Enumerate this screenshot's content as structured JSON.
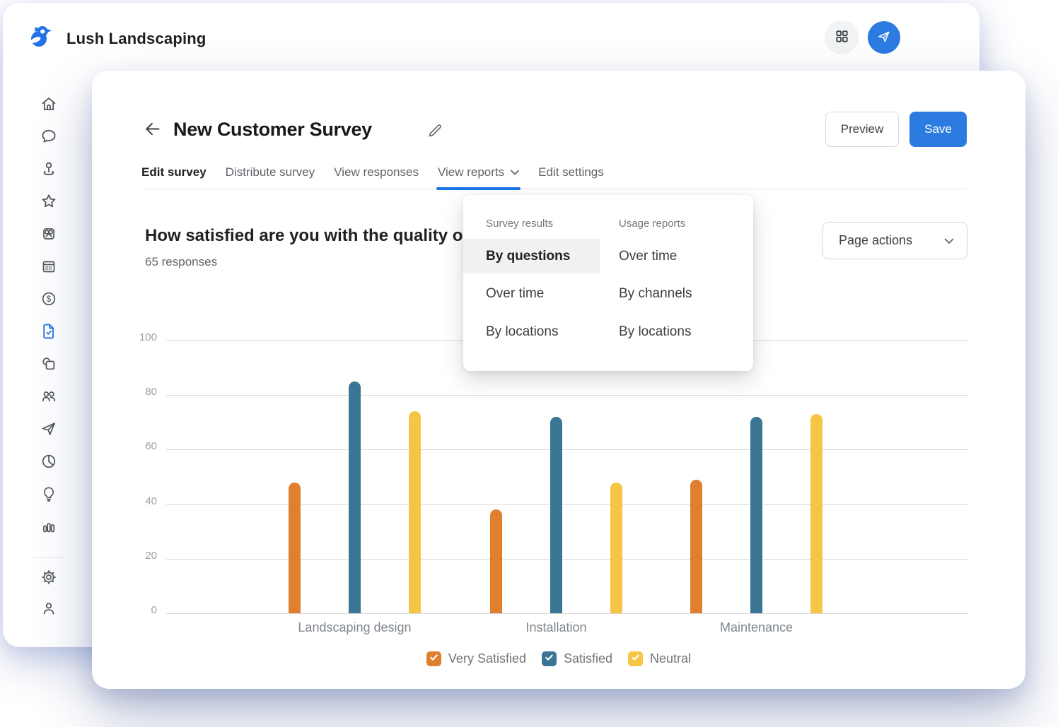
{
  "brand": {
    "name": "Lush Landscaping"
  },
  "topbar": {
    "icons": [
      "bird-logo",
      "apps-grid",
      "send-plane"
    ]
  },
  "sidebar": {
    "icons": [
      "home",
      "chat",
      "location-pin",
      "star",
      "gift",
      "calendar",
      "payments-dollar",
      "survey-doc",
      "pages",
      "contacts",
      "campaigns-send",
      "reports-pie",
      "insights-bulb",
      "analytics-bars",
      "settings-gear",
      "profile-person"
    ],
    "active_icon": "survey-doc"
  },
  "header": {
    "title": "New Customer Survey",
    "preview_label": "Preview",
    "save_label": "Save"
  },
  "tabs": [
    {
      "label": "Edit survey"
    },
    {
      "label": "Distribute survey"
    },
    {
      "label": "View responses"
    },
    {
      "label": "View reports"
    },
    {
      "label": "Edit settings"
    }
  ],
  "selected_tab": "Edit survey",
  "open_dropdown_tab": "View reports",
  "reports_menu": {
    "columns": [
      {
        "header": "Survey results",
        "items": [
          "By questions",
          "Over time",
          "By locations"
        ],
        "selected_item": "By questions"
      },
      {
        "header": "Usage reports",
        "items": [
          "Over time",
          "By channels",
          "By locations"
        ]
      }
    ]
  },
  "question": {
    "title": "How satisfied are you with the quality of",
    "responses_label": "65 responses"
  },
  "page_actions_label": "Page actions",
  "colors": {
    "accent_blue": "#2C7BE0",
    "underline_blue": "#1A73E8",
    "orange": "#E0802F",
    "teal_blue": "#3A7593",
    "yellow": "#F7C546"
  },
  "chart_data": {
    "type": "bar",
    "title": "",
    "xlabel": "",
    "ylabel": "",
    "categories": [
      "Landscaping design",
      "Installation",
      "Maintenance"
    ],
    "series": [
      {
        "name": "Very Satisfied",
        "color": "#E0802F",
        "values": [
          48,
          38,
          49
        ]
      },
      {
        "name": "Satisfied",
        "color": "#3A7593",
        "values": [
          85,
          72,
          72
        ]
      },
      {
        "name": "Neutral",
        "color": "#F7C546",
        "values": [
          74,
          48,
          73
        ]
      }
    ],
    "yticks": [
      0,
      20,
      40,
      60,
      80,
      100
    ],
    "ylim": [
      0,
      100
    ],
    "grid": true,
    "legend_position": "bottom"
  }
}
